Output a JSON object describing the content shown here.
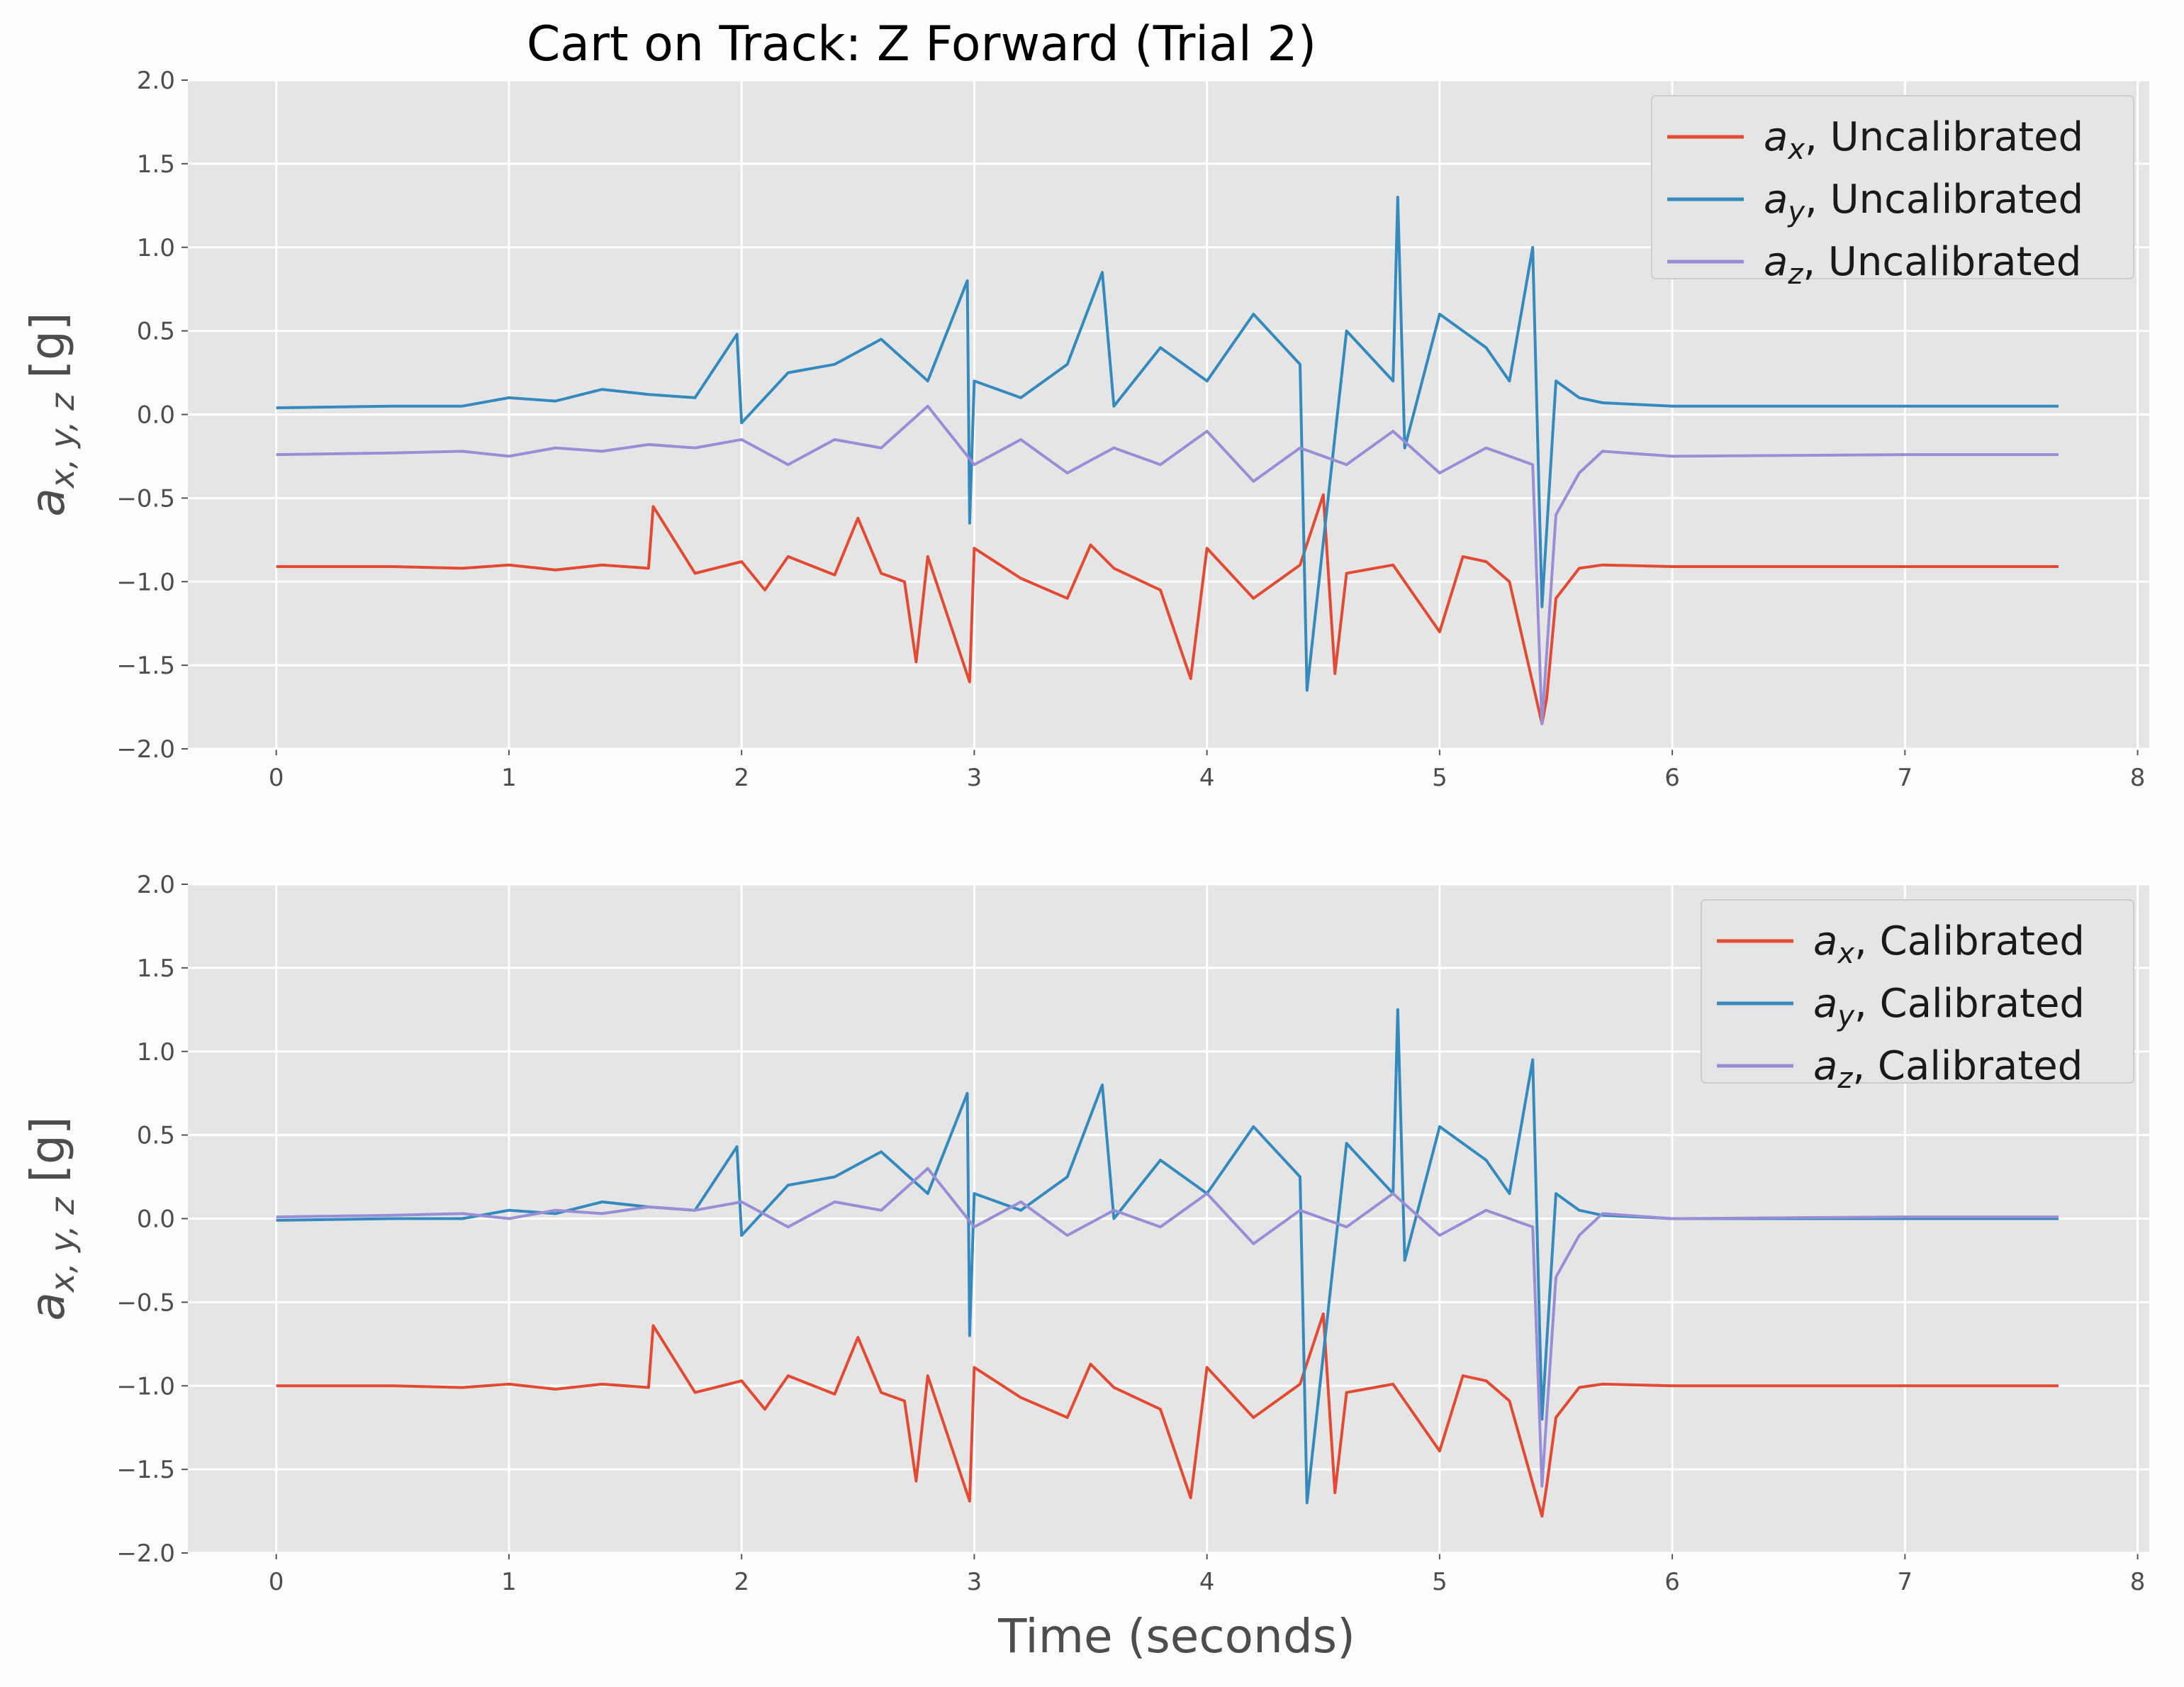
{
  "title": "Cart on Track: Z Forward (Trial 2)",
  "xlabel": "Time (seconds)",
  "ylabel": {
    "main": "a",
    "sub": "x, y, z",
    "unit": " [g]"
  },
  "colors": {
    "ax": "#e24a33",
    "ay": "#348abd",
    "az": "#988ed5",
    "panel_bg": "#e5e5e5",
    "grid": "#ffffff"
  },
  "chart_data": [
    {
      "type": "line",
      "xlim": [
        -0.38,
        8.05
      ],
      "ylim": [
        -2.0,
        2.0
      ],
      "xticks": [
        "0",
        "1",
        "2",
        "3",
        "4",
        "5",
        "6",
        "7",
        "8"
      ],
      "yticks": [
        "−2.0",
        "−1.5",
        "−1.0",
        "−0.5",
        "0.0",
        "0.5",
        "1.0",
        "1.5",
        "2.0"
      ],
      "legend_position": "top-right",
      "grid": true,
      "series": [
        {
          "name": {
            "var": "a",
            "sub": "x",
            "text": ", Uncalibrated"
          },
          "key": "ax",
          "x": [
            0,
            0.5,
            0.8,
            1.0,
            1.2,
            1.4,
            1.6,
            1.62,
            1.8,
            2.0,
            2.1,
            2.2,
            2.4,
            2.5,
            2.6,
            2.7,
            2.75,
            2.8,
            2.98,
            3.0,
            3.2,
            3.4,
            3.5,
            3.6,
            3.8,
            3.93,
            4.0,
            4.2,
            4.4,
            4.5,
            4.55,
            4.6,
            4.8,
            5.0,
            5.1,
            5.2,
            5.3,
            5.44,
            5.46,
            5.5,
            5.6,
            5.7,
            6.0,
            7.0,
            7.66
          ],
          "y": [
            -0.91,
            -0.91,
            -0.92,
            -0.9,
            -0.93,
            -0.9,
            -0.92,
            -0.55,
            -0.95,
            -0.88,
            -1.05,
            -0.85,
            -0.96,
            -0.62,
            -0.95,
            -1.0,
            -1.48,
            -0.85,
            -1.6,
            -0.8,
            -0.98,
            -1.1,
            -0.78,
            -0.92,
            -1.05,
            -1.58,
            -0.8,
            -1.1,
            -0.9,
            -0.48,
            -1.55,
            -0.95,
            -0.9,
            -1.3,
            -0.85,
            -0.88,
            -1.0,
            -1.85,
            -1.7,
            -1.1,
            -0.92,
            -0.9,
            -0.91,
            -0.91,
            -0.91
          ]
        },
        {
          "name": {
            "var": "a",
            "sub": "y",
            "text": ", Uncalibrated"
          },
          "key": "ay",
          "x": [
            0,
            0.5,
            0.8,
            1.0,
            1.2,
            1.4,
            1.6,
            1.8,
            1.98,
            2.0,
            2.2,
            2.4,
            2.6,
            2.8,
            2.97,
            2.98,
            3.0,
            3.2,
            3.4,
            3.55,
            3.6,
            3.8,
            4.0,
            4.2,
            4.4,
            4.43,
            4.6,
            4.8,
            4.82,
            4.85,
            5.0,
            5.2,
            5.3,
            5.4,
            5.44,
            5.5,
            5.6,
            5.7,
            6.0,
            7.0,
            7.66
          ],
          "y": [
            0.04,
            0.05,
            0.05,
            0.1,
            0.08,
            0.15,
            0.12,
            0.1,
            0.48,
            -0.05,
            0.25,
            0.3,
            0.45,
            0.2,
            0.8,
            -0.65,
            0.2,
            0.1,
            0.3,
            0.85,
            0.05,
            0.4,
            0.2,
            0.6,
            0.3,
            -1.65,
            0.5,
            0.2,
            1.3,
            -0.2,
            0.6,
            0.4,
            0.2,
            1.0,
            -1.15,
            0.2,
            0.1,
            0.07,
            0.05,
            0.05,
            0.05
          ]
        },
        {
          "name": {
            "var": "a",
            "sub": "z",
            "text": ", Uncalibrated"
          },
          "key": "az",
          "x": [
            0,
            0.5,
            0.8,
            1.0,
            1.2,
            1.4,
            1.6,
            1.8,
            2.0,
            2.2,
            2.4,
            2.6,
            2.8,
            3.0,
            3.2,
            3.4,
            3.6,
            3.8,
            4.0,
            4.2,
            4.4,
            4.6,
            4.8,
            5.0,
            5.2,
            5.4,
            5.44,
            5.5,
            5.6,
            5.7,
            6.0,
            7.0,
            7.66
          ],
          "y": [
            -0.24,
            -0.23,
            -0.22,
            -0.25,
            -0.2,
            -0.22,
            -0.18,
            -0.2,
            -0.15,
            -0.3,
            -0.15,
            -0.2,
            0.05,
            -0.3,
            -0.15,
            -0.35,
            -0.2,
            -0.3,
            -0.1,
            -0.4,
            -0.2,
            -0.3,
            -0.1,
            -0.35,
            -0.2,
            -0.3,
            -1.85,
            -0.6,
            -0.35,
            -0.22,
            -0.25,
            -0.24,
            -0.24
          ]
        }
      ]
    },
    {
      "type": "line",
      "xlim": [
        -0.38,
        8.05
      ],
      "ylim": [
        -2.0,
        2.0
      ],
      "xticks": [
        "0",
        "1",
        "2",
        "3",
        "4",
        "5",
        "6",
        "7",
        "8"
      ],
      "yticks": [
        "−2.0",
        "−1.5",
        "−1.0",
        "−0.5",
        "0.0",
        "0.5",
        "1.0",
        "1.5",
        "2.0"
      ],
      "legend_position": "top-right",
      "grid": true,
      "series": [
        {
          "name": {
            "var": "a",
            "sub": "x",
            "text": ", Calibrated"
          },
          "key": "ax",
          "x": [
            0,
            0.5,
            0.8,
            1.0,
            1.2,
            1.4,
            1.6,
            1.62,
            1.8,
            2.0,
            2.1,
            2.2,
            2.4,
            2.5,
            2.6,
            2.7,
            2.75,
            2.8,
            2.98,
            3.0,
            3.2,
            3.4,
            3.5,
            3.6,
            3.8,
            3.93,
            4.0,
            4.2,
            4.4,
            4.5,
            4.55,
            4.6,
            4.8,
            5.0,
            5.1,
            5.2,
            5.3,
            5.44,
            5.46,
            5.5,
            5.6,
            5.7,
            6.0,
            7.0,
            7.66
          ],
          "y": [
            -1.0,
            -1.0,
            -1.01,
            -0.99,
            -1.02,
            -0.99,
            -1.01,
            -0.64,
            -1.04,
            -0.97,
            -1.14,
            -0.94,
            -1.05,
            -0.71,
            -1.04,
            -1.09,
            -1.57,
            -0.94,
            -1.69,
            -0.89,
            -1.07,
            -1.19,
            -0.87,
            -1.01,
            -1.14,
            -1.67,
            -0.89,
            -1.19,
            -0.99,
            -0.57,
            -1.64,
            -1.04,
            -0.99,
            -1.39,
            -0.94,
            -0.97,
            -1.09,
            -1.78,
            -1.6,
            -1.19,
            -1.01,
            -0.99,
            -1.0,
            -1.0,
            -1.0
          ]
        },
        {
          "name": {
            "var": "a",
            "sub": "y",
            "text": ", Calibrated"
          },
          "key": "ay",
          "x": [
            0,
            0.5,
            0.8,
            1.0,
            1.2,
            1.4,
            1.6,
            1.8,
            1.98,
            2.0,
            2.2,
            2.4,
            2.6,
            2.8,
            2.97,
            2.98,
            3.0,
            3.2,
            3.4,
            3.55,
            3.6,
            3.8,
            4.0,
            4.2,
            4.4,
            4.43,
            4.6,
            4.8,
            4.82,
            4.85,
            5.0,
            5.2,
            5.3,
            5.4,
            5.44,
            5.5,
            5.6,
            5.7,
            6.0,
            7.0,
            7.66
          ],
          "y": [
            -0.01,
            0.0,
            0.0,
            0.05,
            0.03,
            0.1,
            0.07,
            0.05,
            0.43,
            -0.1,
            0.2,
            0.25,
            0.4,
            0.15,
            0.75,
            -0.7,
            0.15,
            0.05,
            0.25,
            0.8,
            0.0,
            0.35,
            0.15,
            0.55,
            0.25,
            -1.7,
            0.45,
            0.15,
            1.25,
            -0.25,
            0.55,
            0.35,
            0.15,
            0.95,
            -1.2,
            0.15,
            0.05,
            0.02,
            0.0,
            0.0,
            0.0
          ]
        },
        {
          "name": {
            "var": "a",
            "sub": "z",
            "text": ", Calibrated"
          },
          "key": "az",
          "x": [
            0,
            0.5,
            0.8,
            1.0,
            1.2,
            1.4,
            1.6,
            1.8,
            2.0,
            2.2,
            2.4,
            2.6,
            2.8,
            3.0,
            3.2,
            3.4,
            3.6,
            3.8,
            4.0,
            4.2,
            4.4,
            4.6,
            4.8,
            5.0,
            5.2,
            5.4,
            5.44,
            5.5,
            5.6,
            5.7,
            6.0,
            7.0,
            7.66
          ],
          "y": [
            0.01,
            0.02,
            0.03,
            0.0,
            0.05,
            0.03,
            0.07,
            0.05,
            0.1,
            -0.05,
            0.1,
            0.05,
            0.3,
            -0.05,
            0.1,
            -0.1,
            0.05,
            -0.05,
            0.15,
            -0.15,
            0.05,
            -0.05,
            0.15,
            -0.1,
            0.05,
            -0.05,
            -1.6,
            -0.35,
            -0.1,
            0.03,
            0.0,
            0.01,
            0.01
          ]
        }
      ]
    }
  ]
}
